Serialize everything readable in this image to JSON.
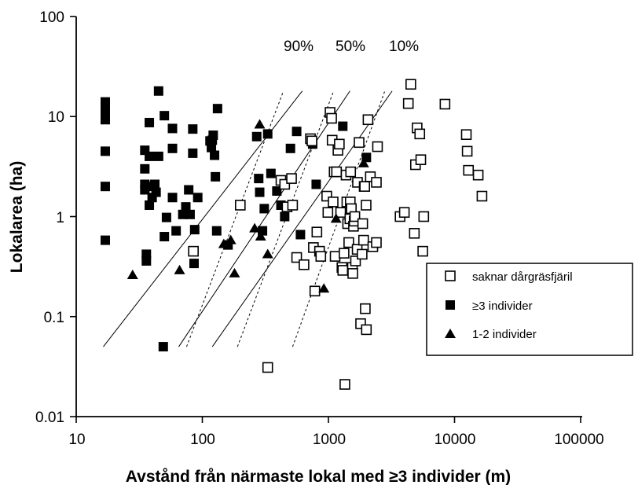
{
  "chart_data": {
    "type": "scatter",
    "xscale": "log",
    "yscale": "log",
    "xlim": [
      10,
      100000
    ],
    "ylim": [
      0.01,
      100
    ],
    "xlabel": "Avstånd från närmaste lokal med ≥3 individer (m)",
    "ylabel": "Lokalarea (ha)",
    "x_ticks": [
      "10",
      "100",
      "1000",
      "10000",
      "100000"
    ],
    "y_ticks": [
      "0.01",
      "0.1",
      "1",
      "10",
      "100"
    ],
    "grid": false,
    "legend_position": "right",
    "legend": [
      {
        "marker": "open-square",
        "label": "saknar dårgräsfjäril"
      },
      {
        "marker": "filled-square",
        "label": "≥3 individer"
      },
      {
        "marker": "filled-triangle",
        "label": "1-2 individer"
      }
    ],
    "curve_labels": [
      "90%",
      "50%",
      "10%"
    ],
    "curves": [
      {
        "label": "90%",
        "solid": [
          [
            16.4,
            0.05
          ],
          [
            620,
            18
          ]
        ],
        "dashed": [
          [
            75,
            0.05
          ],
          [
            440,
            18
          ]
        ]
      },
      {
        "label": "50%",
        "solid": [
          [
            65,
            0.05
          ],
          [
            1480,
            18
          ]
        ],
        "dashed": [
          [
            190,
            0.05
          ],
          [
            1100,
            18
          ]
        ]
      },
      {
        "label": "10%",
        "solid": [
          [
            120,
            0.05
          ],
          [
            3200,
            18
          ]
        ],
        "dashed": [
          [
            520,
            0.05
          ],
          [
            2800,
            18
          ]
        ]
      }
    ],
    "series": [
      {
        "name": "≥3 individer",
        "marker": "filled-square",
        "points": [
          [
            17,
            14
          ],
          [
            17,
            11.5
          ],
          [
            17,
            9.3
          ],
          [
            17,
            4.5
          ],
          [
            17,
            2
          ],
          [
            17,
            0.58
          ],
          [
            35,
            4.6
          ],
          [
            35,
            3
          ],
          [
            35,
            2.1
          ],
          [
            35,
            1.85
          ],
          [
            36,
            0.42
          ],
          [
            36,
            0.36
          ],
          [
            38,
            8.7
          ],
          [
            38,
            4
          ],
          [
            38,
            1.3
          ],
          [
            40,
            2
          ],
          [
            40,
            1.55
          ],
          [
            42,
            2.1
          ],
          [
            43,
            1.75
          ],
          [
            45,
            18
          ],
          [
            45,
            4
          ],
          [
            49,
            0.05
          ],
          [
            50,
            10.2
          ],
          [
            50,
            0.63
          ],
          [
            52,
            0.98
          ],
          [
            58,
            7.6
          ],
          [
            58,
            4.8
          ],
          [
            58,
            1.55
          ],
          [
            62,
            0.72
          ],
          [
            70,
            1.05
          ],
          [
            74,
            1.25
          ],
          [
            78,
            1.85
          ],
          [
            80,
            1.05
          ],
          [
            84,
            7.5
          ],
          [
            84,
            4.3
          ],
          [
            86,
            0.34
          ],
          [
            87,
            0.74
          ],
          [
            92,
            1.55
          ],
          [
            115,
            5.7
          ],
          [
            118,
            4.9
          ],
          [
            120,
            5.8
          ],
          [
            122,
            6.5
          ],
          [
            125,
            4.1
          ],
          [
            127,
            2.5
          ],
          [
            130,
            0.72
          ],
          [
            132,
            12
          ],
          [
            160,
            0.52
          ],
          [
            270,
            6.3
          ],
          [
            280,
            2.4
          ],
          [
            285,
            1.75
          ],
          [
            300,
            0.72
          ],
          [
            310,
            1.2
          ],
          [
            330,
            6.7
          ],
          [
            350,
            2.7
          ],
          [
            390,
            1.8
          ],
          [
            420,
            1.3
          ],
          [
            450,
            1
          ],
          [
            500,
            4.8
          ],
          [
            560,
            7.1
          ],
          [
            600,
            0.66
          ],
          [
            750,
            5.3
          ],
          [
            800,
            2.1
          ],
          [
            1300,
            8
          ],
          [
            2000,
            3.9
          ]
        ]
      },
      {
        "name": "saknar dårgräsfjäril",
        "marker": "open-square",
        "points": [
          [
            85,
            0.45
          ],
          [
            200,
            1.3
          ],
          [
            330,
            0.031
          ],
          [
            420,
            2.3
          ],
          [
            450,
            2.1
          ],
          [
            470,
            1.25
          ],
          [
            510,
            2.4
          ],
          [
            520,
            1.3
          ],
          [
            560,
            0.39
          ],
          [
            640,
            0.33
          ],
          [
            720,
            6
          ],
          [
            740,
            5.7
          ],
          [
            760,
            0.49
          ],
          [
            780,
            0.18
          ],
          [
            810,
            0.7
          ],
          [
            850,
            0.45
          ],
          [
            870,
            0.4
          ],
          [
            970,
            1.6
          ],
          [
            990,
            1.1
          ],
          [
            1030,
            11
          ],
          [
            1060,
            9.6
          ],
          [
            1070,
            5.8
          ],
          [
            1090,
            1.4
          ],
          [
            1110,
            2.8
          ],
          [
            1130,
            0.4
          ],
          [
            1160,
            2.8
          ],
          [
            1190,
            4.6
          ],
          [
            1220,
            5.3
          ],
          [
            1250,
            1.1
          ],
          [
            1280,
            0.31
          ],
          [
            1300,
            0.29
          ],
          [
            1330,
            0.43
          ],
          [
            1350,
            0.021
          ],
          [
            1380,
            2.6
          ],
          [
            1400,
            1.4
          ],
          [
            1420,
            0.85
          ],
          [
            1450,
            0.55
          ],
          [
            1480,
            0.95
          ],
          [
            1490,
            1.4
          ],
          [
            1500,
            2.8
          ],
          [
            1520,
            1.2
          ],
          [
            1550,
            0.31
          ],
          [
            1560,
            0.27
          ],
          [
            1580,
            0.8
          ],
          [
            1600,
            0.9
          ],
          [
            1620,
            1
          ],
          [
            1640,
            0.36
          ],
          [
            1690,
            0.47
          ],
          [
            1700,
            2.2
          ],
          [
            1750,
            5.5
          ],
          [
            1800,
            0.085
          ],
          [
            1850,
            0.42
          ],
          [
            1870,
            0.85
          ],
          [
            1900,
            0.58
          ],
          [
            1920,
            2
          ],
          [
            1940,
            2
          ],
          [
            1960,
            0.12
          ],
          [
            1990,
            1.3
          ],
          [
            2000,
            0.074
          ],
          [
            2060,
            9.3
          ],
          [
            2150,
            2.5
          ],
          [
            2250,
            0.5
          ],
          [
            2400,
            0.55
          ],
          [
            2400,
            2.2
          ],
          [
            2450,
            5
          ],
          [
            3700,
            1
          ],
          [
            4000,
            1.1
          ],
          [
            4300,
            13.5
          ],
          [
            4500,
            21
          ],
          [
            4800,
            0.68
          ],
          [
            4900,
            3.3
          ],
          [
            5050,
            7.7
          ],
          [
            5300,
            6.7
          ],
          [
            5400,
            3.7
          ],
          [
            5600,
            0.45
          ],
          [
            5700,
            1
          ],
          [
            8400,
            13.3
          ],
          [
            12400,
            6.6
          ],
          [
            12600,
            4.5
          ],
          [
            12900,
            2.9
          ],
          [
            15400,
            2.6
          ],
          [
            16500,
            1.6
          ]
        ]
      },
      {
        "name": "1-2 individer",
        "marker": "filled-triangle",
        "points": [
          [
            28,
            0.26
          ],
          [
            66,
            0.29
          ],
          [
            148,
            0.53
          ],
          [
            168,
            0.58
          ],
          [
            180,
            0.27
          ],
          [
            260,
            0.76
          ],
          [
            285,
            8.3
          ],
          [
            290,
            0.63
          ],
          [
            330,
            0.42
          ],
          [
            920,
            0.19
          ],
          [
            1150,
            0.95
          ],
          [
            1900,
            3.4
          ]
        ]
      }
    ]
  }
}
